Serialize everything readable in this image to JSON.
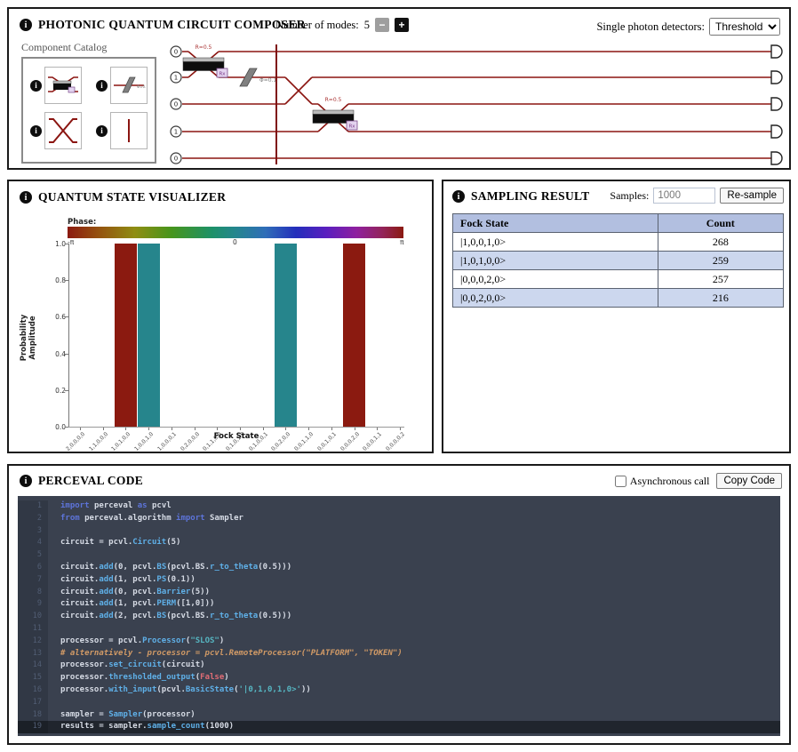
{
  "composer": {
    "title": "PHOTONIC QUANTUM CIRCUIT COMPOSER",
    "modes": {
      "label": "Number of modes:",
      "value": "5",
      "minus": "−",
      "plus": "+"
    },
    "detectors": {
      "label": "Single photon detectors:",
      "value": "Threshold"
    },
    "catalog": {
      "label": "Component Catalog",
      "items": [
        {
          "icon": "beam-splitter-icon"
        },
        {
          "icon": "phase-shifter-icon"
        },
        {
          "icon": "permutation-icon"
        },
        {
          "icon": "barrier-icon"
        }
      ]
    },
    "circuit": {
      "inputs": [
        "0",
        "1",
        "0",
        "1",
        "0"
      ],
      "bs1_label": "R=0.5",
      "bs2_label": "R=0.5",
      "ps_label": "Φ=0.1",
      "rx_label": "Rx"
    }
  },
  "visualizer": {
    "title": "QUANTUM STATE VISUALIZER"
  },
  "chart_data": {
    "type": "bar",
    "title": "",
    "xlabel": "Fock State",
    "ylabel": "Probability Amplitude",
    "ylim": [
      0,
      1
    ],
    "yticks": [
      "0.0",
      "0.2",
      "0.4",
      "0.6",
      "0.8",
      "1.0"
    ],
    "colorbar": {
      "label": "Phase:",
      "ticks": [
        "-π",
        "0",
        "π"
      ],
      "phase_neg_pi_color": "#8b1a10",
      "phase_zero_color": "#26858c"
    },
    "categories": [
      "2,0,0,0,0",
      "1,1,0,0,0",
      "1,0,1,0,0",
      "1,0,0,1,0",
      "1,0,0,0,1",
      "0,2,0,0,0",
      "0,1,1,0,0",
      "0,1,0,1,0",
      "0,1,0,0,1",
      "0,0,2,0,0",
      "0,0,1,1,0",
      "0,0,1,0,1",
      "0,0,0,2,0",
      "0,0,0,1,1",
      "0,0,0,0,2"
    ],
    "values": [
      0,
      0,
      1.0,
      1.0,
      0,
      0,
      0,
      0,
      0,
      1.0,
      0,
      0,
      1.0,
      0,
      0
    ],
    "bar_colors": [
      "",
      "",
      "#8b1a10",
      "#26858c",
      "",
      "",
      "",
      "",
      "",
      "#26858c",
      "",
      "",
      "#8b1a10",
      "",
      ""
    ],
    "legend": "none",
    "grid": false
  },
  "sampling": {
    "title": "SAMPLING RESULT",
    "samples_label": "Samples:",
    "samples_value": "1000",
    "resample_button": "Re-sample",
    "table": {
      "headers": [
        "Fock State",
        "Count"
      ],
      "rows": [
        [
          "|1,0,0,1,0>",
          "268"
        ],
        [
          "|1,0,1,0,0>",
          "259"
        ],
        [
          "|0,0,0,2,0>",
          "257"
        ],
        [
          "|0,0,2,0,0>",
          "216"
        ]
      ]
    }
  },
  "code_panel": {
    "title": "PERCEVAL CODE",
    "async_label": "Asynchronous call",
    "copy_button": "Copy Code",
    "lines": [
      {
        "segs": [
          [
            "k",
            "import "
          ],
          [
            "p",
            "perceval "
          ],
          [
            "k",
            "as "
          ],
          [
            "p",
            "pcvl"
          ]
        ]
      },
      {
        "segs": [
          [
            "k",
            "from "
          ],
          [
            "p",
            "perceval.algorithm "
          ],
          [
            "k",
            "import "
          ],
          [
            "p",
            "Sampler"
          ]
        ]
      },
      {
        "segs": []
      },
      {
        "segs": [
          [
            "p",
            "circuit = pcvl."
          ],
          [
            "f",
            "Circuit"
          ],
          [
            "p",
            "(5)"
          ]
        ]
      },
      {
        "segs": []
      },
      {
        "segs": [
          [
            "p",
            "circuit."
          ],
          [
            "f",
            "add"
          ],
          [
            "p",
            "(0, pcvl."
          ],
          [
            "f",
            "BS"
          ],
          [
            "p",
            "(pcvl.BS."
          ],
          [
            "f",
            "r_to_theta"
          ],
          [
            "p",
            "(0.5)))"
          ]
        ]
      },
      {
        "segs": [
          [
            "p",
            "circuit."
          ],
          [
            "f",
            "add"
          ],
          [
            "p",
            "(1, pcvl."
          ],
          [
            "f",
            "PS"
          ],
          [
            "p",
            "(0.1))"
          ]
        ]
      },
      {
        "segs": [
          [
            "p",
            "circuit."
          ],
          [
            "f",
            "add"
          ],
          [
            "p",
            "(0, pcvl."
          ],
          [
            "f",
            "Barrier"
          ],
          [
            "p",
            "(5))"
          ]
        ]
      },
      {
        "segs": [
          [
            "p",
            "circuit."
          ],
          [
            "f",
            "add"
          ],
          [
            "p",
            "(1, pcvl."
          ],
          [
            "f",
            "PERM"
          ],
          [
            "p",
            "([1,0]))"
          ]
        ]
      },
      {
        "segs": [
          [
            "p",
            "circuit."
          ],
          [
            "f",
            "add"
          ],
          [
            "p",
            "(2, pcvl."
          ],
          [
            "f",
            "BS"
          ],
          [
            "p",
            "(pcvl.BS."
          ],
          [
            "f",
            "r_to_theta"
          ],
          [
            "p",
            "(0.5)))"
          ]
        ]
      },
      {
        "segs": []
      },
      {
        "segs": [
          [
            "p",
            "processor = pcvl."
          ],
          [
            "f",
            "Processor"
          ],
          [
            "p",
            "("
          ],
          [
            "s",
            "\"SLOS\""
          ],
          [
            "p",
            ")"
          ]
        ]
      },
      {
        "segs": [
          [
            "c",
            "# alternatively - processor = pcvl.RemoteProcessor(\"PLATFORM\", \"TOKEN\")"
          ]
        ]
      },
      {
        "segs": [
          [
            "p",
            "processor."
          ],
          [
            "f",
            "set_circuit"
          ],
          [
            "p",
            "(circuit)"
          ]
        ]
      },
      {
        "segs": [
          [
            "p",
            "processor."
          ],
          [
            "f",
            "thresholded_output"
          ],
          [
            "p",
            "("
          ],
          [
            "r",
            "False"
          ],
          [
            "p",
            ")"
          ]
        ]
      },
      {
        "segs": [
          [
            "p",
            "processor."
          ],
          [
            "f",
            "with_input"
          ],
          [
            "p",
            "(pcvl."
          ],
          [
            "f",
            "BasicState"
          ],
          [
            "p",
            "("
          ],
          [
            "s",
            "'|0,1,0,1,0>'"
          ],
          [
            "p",
            "))"
          ]
        ]
      },
      {
        "segs": []
      },
      {
        "segs": [
          [
            "p",
            "sampler = "
          ],
          [
            "f",
            "Sampler"
          ],
          [
            "p",
            "(processor)"
          ]
        ]
      },
      {
        "segs": [
          [
            "p",
            "results = sampler."
          ],
          [
            "f",
            "sample_count"
          ],
          [
            "p",
            "(1000)"
          ]
        ],
        "hl": true
      }
    ]
  }
}
